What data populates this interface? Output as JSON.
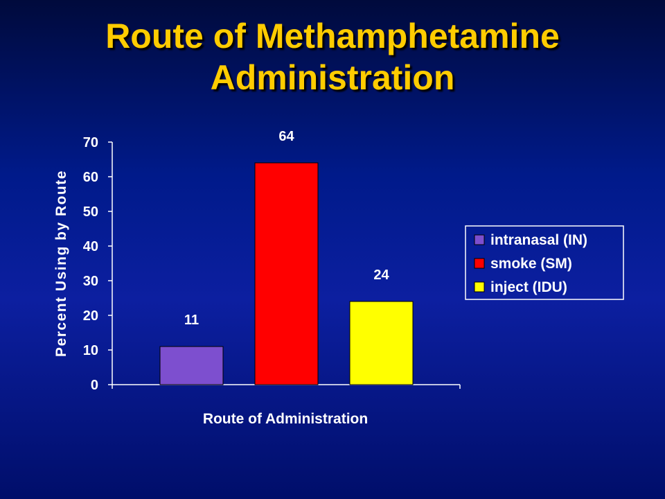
{
  "slide": {
    "title_line1": "Route of Methamphetamine",
    "title_line2": "Administration"
  },
  "colors": {
    "title": "#ffcc00",
    "text": "#ffffff",
    "background_top": "#000a3c",
    "background_mid": "#0c1fa0"
  },
  "chart_data": {
    "type": "bar",
    "title": "",
    "xlabel": "Route of Administration",
    "ylabel": "Percent Using by Route",
    "ylim": [
      0,
      70
    ],
    "yticks": [
      0,
      10,
      20,
      30,
      40,
      50,
      60,
      70
    ],
    "grid": false,
    "legend_position": "right",
    "categories": [
      "intranasal (IN)",
      "smoke (SM)",
      "inject (IDU)"
    ],
    "series": [
      {
        "values": [
          11,
          64,
          24
        ],
        "colors": [
          "#7d4fcf",
          "#ff0000",
          "#ffff00"
        ]
      }
    ],
    "data_labels": [
      "11",
      "64",
      "24"
    ],
    "legend": [
      {
        "label": "intranasal (IN)",
        "color": "#7d4fcf"
      },
      {
        "label": "smoke (SM)",
        "color": "#ff0000"
      },
      {
        "label": "inject (IDU)",
        "color": "#ffff00"
      }
    ]
  }
}
